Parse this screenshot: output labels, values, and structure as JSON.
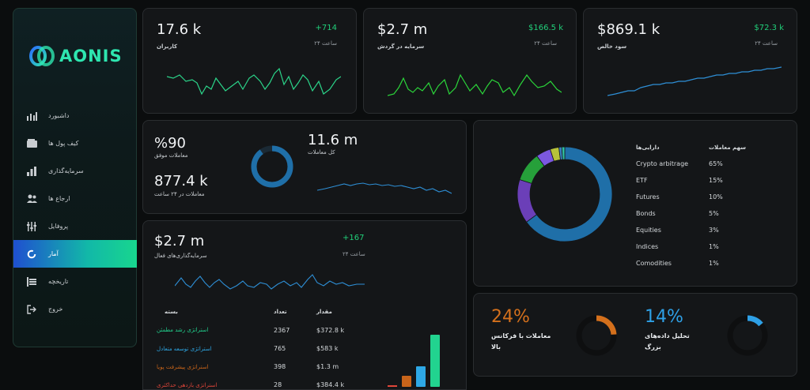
{
  "brand": {
    "name": "AONIS",
    "accent": "#2ee6b0"
  },
  "sidebar": {
    "items": [
      {
        "label": "داشبورد",
        "icon": "bar-chart-icon",
        "active": false
      },
      {
        "label": "کیف پول ها",
        "icon": "wallet-icon",
        "active": false
      },
      {
        "label": "سرمایه‌گذاری",
        "icon": "column-chart-icon",
        "active": false
      },
      {
        "label": "ارجاع ها",
        "icon": "users-icon",
        "active": false
      },
      {
        "label": "پروفایل",
        "icon": "sliders-icon",
        "active": false
      },
      {
        "label": "آمار",
        "icon": "donut-icon",
        "active": true
      },
      {
        "label": "تاریخچه",
        "icon": "history-icon",
        "active": false
      },
      {
        "label": "خروج",
        "icon": "logout-icon",
        "active": false
      }
    ]
  },
  "stats": {
    "users": {
      "value": "17.6 k",
      "label": "کاربران",
      "delta": "+714",
      "period": "۲۴ ساعت"
    },
    "capital": {
      "value": "$2.7 m",
      "label": "سرمایه در گردش",
      "delta": "$166.5 k",
      "period": "۲۴ ساعت"
    },
    "profit": {
      "value": "$869.1 k",
      "label": "سود خالص",
      "delta": "$72.3 k",
      "period": "۲۴ ساعت"
    }
  },
  "trades": {
    "success_value": "%90",
    "success_label": "معاملات موفق",
    "total_value": "11.6 m",
    "total_label": "کل معاملات",
    "day_value": "877.4 k",
    "day_label": "معاملات در ۲۴ ساعت",
    "success_fraction": 0.9
  },
  "active_investments": {
    "value": "$2.7 m",
    "label": "سرمایه‌گذاری‌های فعال",
    "delta": "+167",
    "period": "۲۴ ساعت",
    "headers": {
      "package": "بسته",
      "count": "تعداد",
      "amount": "مقدار"
    },
    "rows": [
      {
        "name": "استراتژی رشد مطمئن",
        "count": "2367",
        "amount": "$372.8 k",
        "color": "#22d38f"
      },
      {
        "name": "استراتژی توسعه متعادل",
        "count": "765",
        "amount": "$583 k",
        "color": "#2ea8e6"
      },
      {
        "name": "استراتژی پیشرفت پویا",
        "count": "398",
        "amount": "$1.3 m",
        "color": "#c8641a"
      },
      {
        "name": "استراتژی بازدهی حداکثری",
        "count": "28",
        "amount": "$384.4 k",
        "color": "#e0463a"
      }
    ]
  },
  "chart_data": {
    "type": "pie",
    "headers": {
      "asset": "دارایی‌ها",
      "share": "سهم معاملات"
    },
    "categories": [
      "Crypto arbitrage",
      "ETF",
      "Futures",
      "Bonds",
      "Equities",
      "Indices",
      "Comodities"
    ],
    "values": [
      65,
      15,
      10,
      5,
      3,
      1,
      1
    ],
    "labels": [
      "65%",
      "15%",
      "10%",
      "5%",
      "3%",
      "1%",
      "1%"
    ],
    "colors": [
      "#1f6fa8",
      "#6b3fb8",
      "#26a03a",
      "#7b58e0",
      "#b7c23a",
      "#3a7fbf",
      "#2fbfa0"
    ]
  },
  "gauges": {
    "hf": {
      "value": "24%",
      "label": "معاملات با فرکانس بالا",
      "fraction": 0.24,
      "color": "#d4701c"
    },
    "bigdata": {
      "value": "14%",
      "label": "تحلیل داده‌های بزرگ",
      "fraction": 0.14,
      "color": "#2ea0e6"
    }
  }
}
